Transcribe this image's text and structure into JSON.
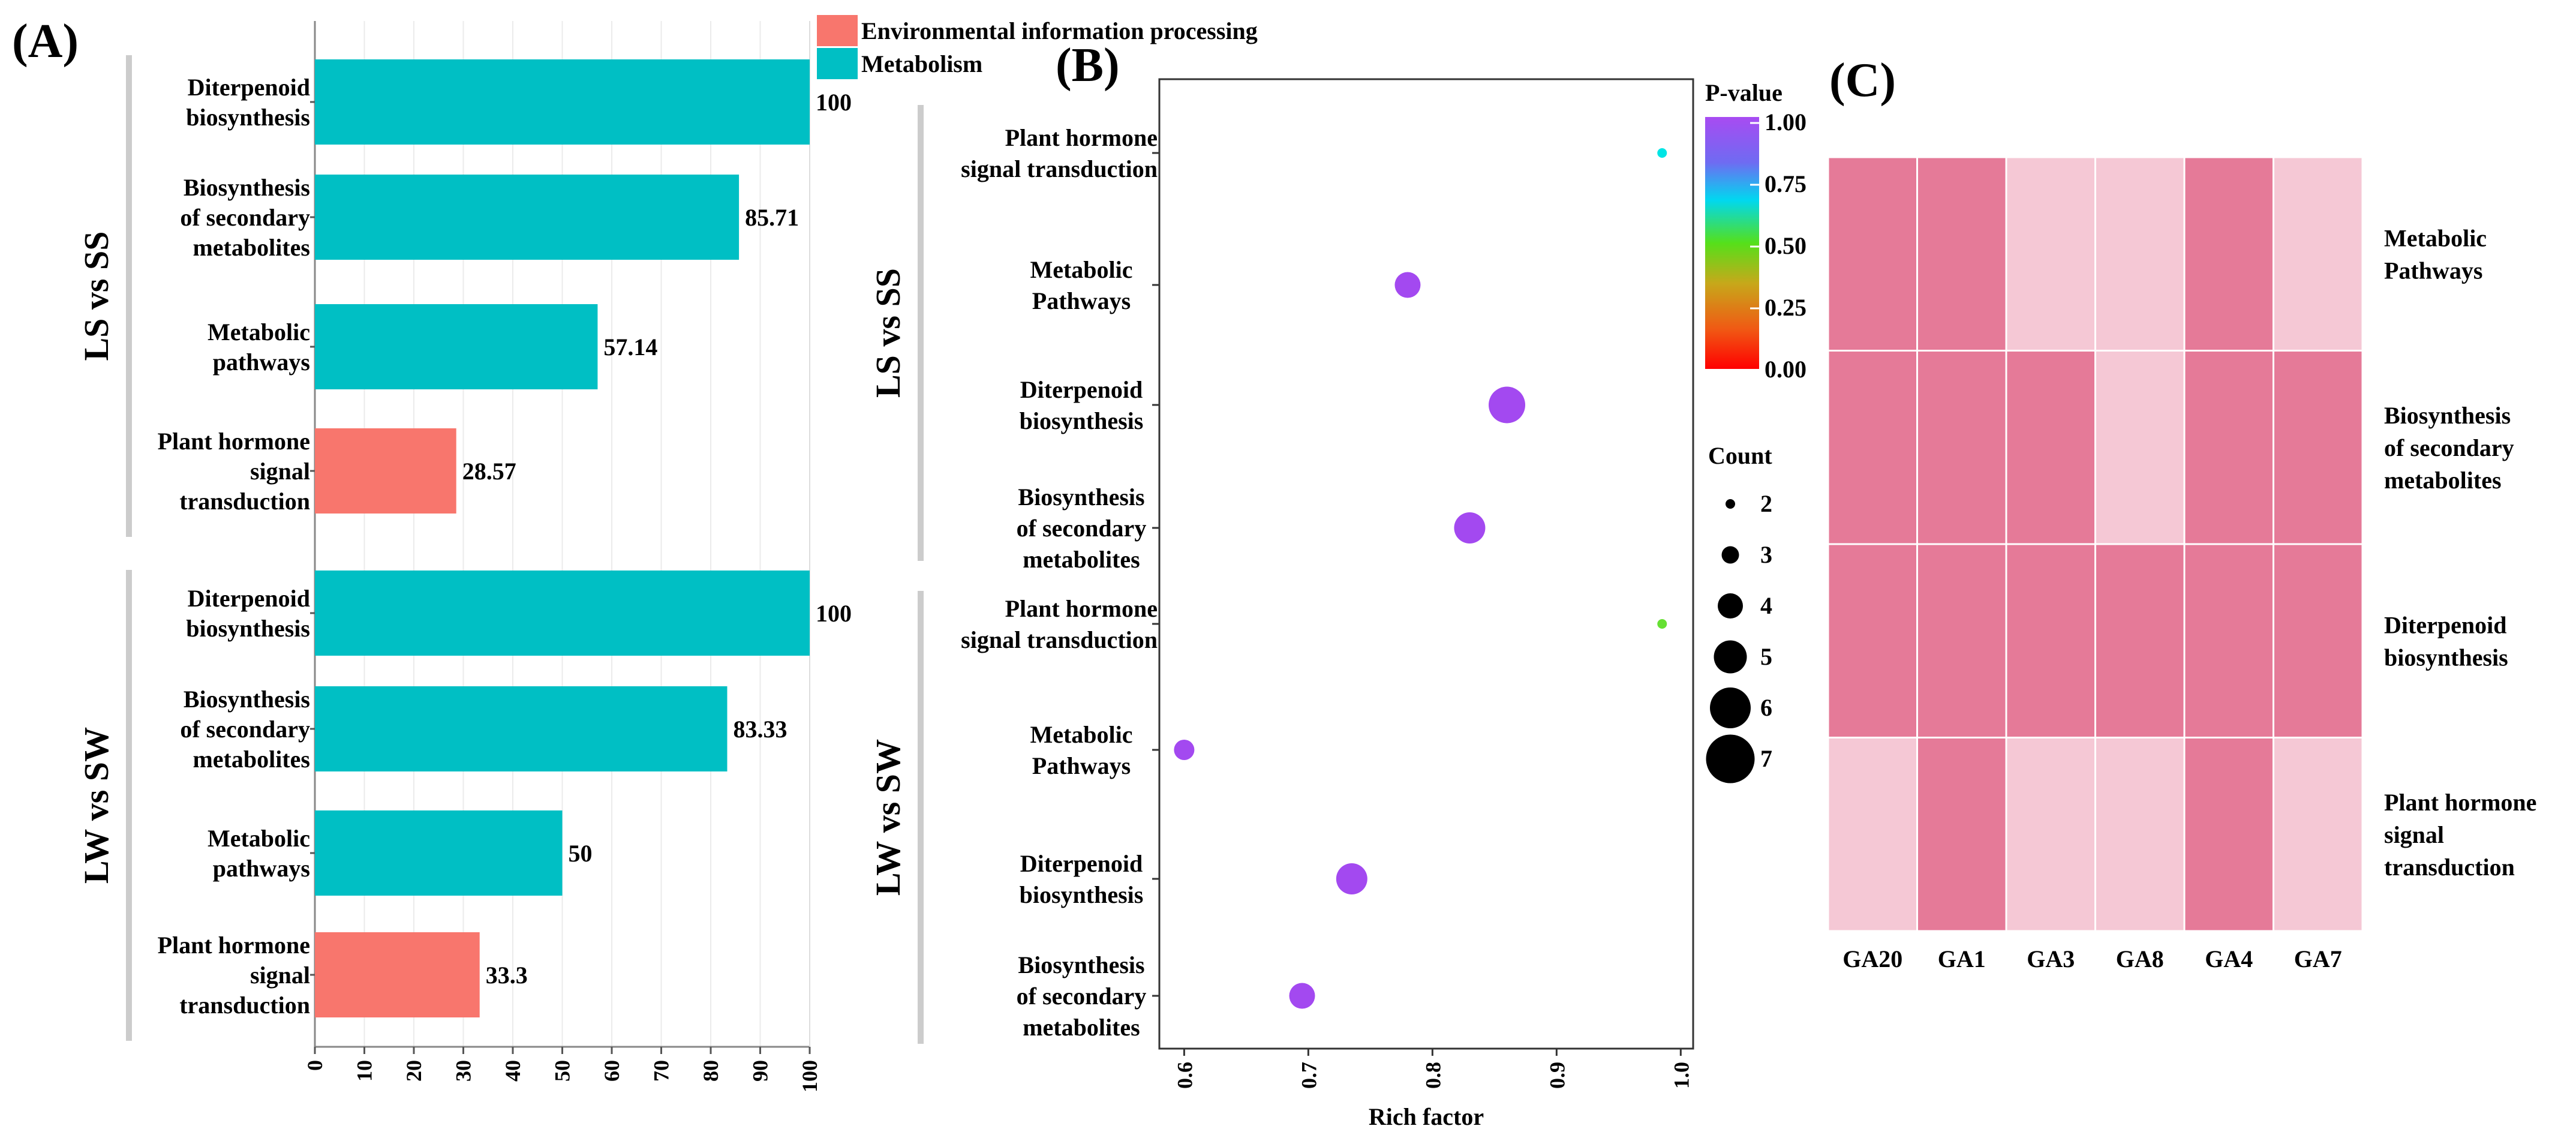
{
  "colors": {
    "metabolism": "#00BFC4",
    "environmental": "#F8766D",
    "heat_high": "#E57A98",
    "heat_low": "#F5C8D5",
    "group_bar": "#CCCCCC",
    "bubble": "#A349F0",
    "grid": "#EBEBEB"
  },
  "chart_data": [
    {
      "panel_label": "(A)",
      "type": "bar",
      "orientation": "horizontal",
      "xlim": [
        0,
        100
      ],
      "xticks": [
        "0",
        "10",
        "20",
        "30",
        "40",
        "50",
        "60",
        "70",
        "80",
        "90",
        "100"
      ],
      "legend": [
        {
          "label": "Environmental information processing",
          "color_key": "environmental"
        },
        {
          "label": "Metabolism",
          "color_key": "metabolism"
        }
      ],
      "groups": [
        {
          "name": "LS vs SS",
          "bars": [
            {
              "lines": [
                "Diterpenoid",
                "biosynthesis"
              ],
              "value": 100,
              "label": "100",
              "category": "metabolism"
            },
            {
              "lines": [
                "Biosynthesis",
                "of secondary",
                "metabolites"
              ],
              "value": 85.71,
              "label": "85.71",
              "category": "metabolism"
            },
            {
              "lines": [
                "Metabolic",
                "pathways"
              ],
              "value": 57.14,
              "label": "57.14",
              "category": "metabolism"
            },
            {
              "lines": [
                "Plant hormone",
                "signal",
                "transduction"
              ],
              "value": 28.57,
              "label": "28.57",
              "category": "environmental"
            }
          ]
        },
        {
          "name": "LW vs SW",
          "bars": [
            {
              "lines": [
                "Diterpenoid",
                "biosynthesis"
              ],
              "value": 100,
              "label": "100",
              "category": "metabolism"
            },
            {
              "lines": [
                "Biosynthesis",
                "of secondary",
                "metabolites"
              ],
              "value": 83.33,
              "label": "83.33",
              "category": "metabolism"
            },
            {
              "lines": [
                "Metabolic",
                "pathways"
              ],
              "value": 50,
              "label": "50",
              "category": "metabolism"
            },
            {
              "lines": [
                "Plant hormone",
                "signal",
                "transduction"
              ],
              "value": 33.3,
              "label": "33.3",
              "category": "environmental"
            }
          ]
        }
      ]
    },
    {
      "panel_label": "(B)",
      "type": "scatter",
      "xlabel": "Rich factor",
      "xlim": [
        0.58,
        1.01
      ],
      "xticks": [
        "0.6",
        "0.7",
        "0.8",
        "0.9",
        "1.0"
      ],
      "colorbar_title": "P-value",
      "colorbar_ticks": [
        "1.00",
        "0.75",
        "0.50",
        "0.25",
        "0.00"
      ],
      "size_title": "Count",
      "size_legend": [
        "2",
        "3",
        "4",
        "5",
        "6",
        "7"
      ],
      "groups": [
        {
          "name": "LS vs SS",
          "points": [
            {
              "lines": [
                "Plant hormone",
                "signal transduction"
              ],
              "x": 0.985,
              "count": 1,
              "color": "#00E5E5"
            },
            {
              "lines": [
                "Metabolic",
                "Pathways"
              ],
              "x": 0.78,
              "count": 4,
              "color": "#A349F0"
            },
            {
              "lines": [
                "Diterpenoid",
                "biosynthesis"
              ],
              "x": 0.86,
              "count": 6,
              "color": "#A349F0"
            },
            {
              "lines": [
                "Biosynthesis",
                "of secondary",
                "metabolites"
              ],
              "x": 0.83,
              "count": 5,
              "color": "#A349F0"
            }
          ]
        },
        {
          "name": "LW vs SW",
          "points": [
            {
              "lines": [
                "Plant hormone",
                "signal transduction"
              ],
              "x": 0.985,
              "count": 1,
              "color": "#66E033"
            },
            {
              "lines": [
                "Metabolic",
                "Pathways"
              ],
              "x": 0.6,
              "count": 3,
              "color": "#A349F0"
            },
            {
              "lines": [
                "Diterpenoid",
                "biosynthesis"
              ],
              "x": 0.735,
              "count": 5,
              "color": "#A349F0"
            },
            {
              "lines": [
                "Biosynthesis",
                "of secondary",
                "metabolites"
              ],
              "x": 0.695,
              "count": 4,
              "color": "#A349F0"
            }
          ]
        }
      ]
    },
    {
      "panel_label": "(C)",
      "type": "heatmap",
      "columns": [
        "GA20",
        "GA1",
        "GA3",
        "GA8",
        "GA4",
        "GA7"
      ],
      "rows": [
        {
          "lines": [
            "Metabolic",
            "Pathways"
          ],
          "cells": [
            1,
            1,
            0,
            0,
            1,
            0
          ]
        },
        {
          "lines": [
            "Biosynthesis",
            "of secondary",
            "metabolites"
          ],
          "cells": [
            1,
            1,
            1,
            0,
            1,
            1
          ]
        },
        {
          "lines": [
            "Diterpenoid",
            "biosynthesis"
          ],
          "cells": [
            1,
            1,
            1,
            1,
            1,
            1
          ]
        },
        {
          "lines": [
            "Plant hormone",
            "signal",
            "transduction"
          ],
          "cells": [
            0,
            1,
            0,
            0,
            1,
            0
          ]
        }
      ]
    }
  ]
}
